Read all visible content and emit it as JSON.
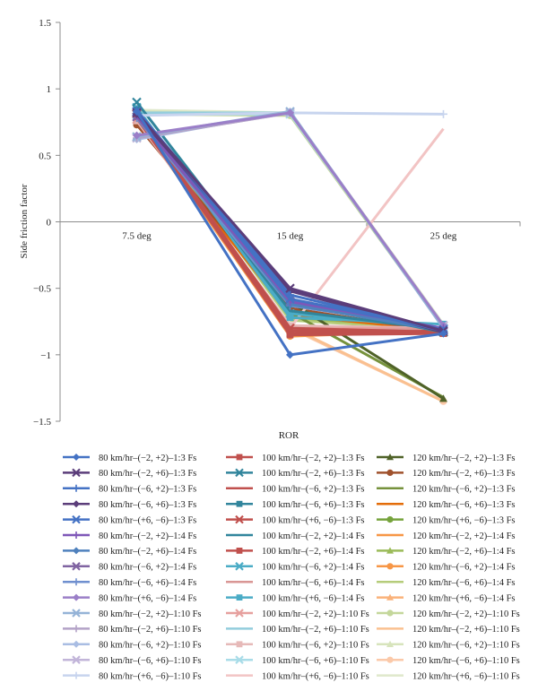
{
  "chart_data": {
    "type": "line",
    "title": "",
    "xlabel": "ROR",
    "ylabel": "Side friction factor",
    "categories": [
      "7.5 deg",
      "15 deg",
      "25 deg"
    ],
    "ylim": [
      -1.5,
      1.5
    ],
    "yticks": [
      1.5,
      1,
      0.5,
      0,
      -0.5,
      -1,
      -1.5
    ],
    "ytick_labels": [
      "1.5",
      "1",
      "0.5",
      "0",
      "−0.5",
      "−1",
      "−1.5"
    ],
    "grid": false,
    "legend_position": "bottom",
    "series": [
      {
        "name": "80 km/hr–(−2, +2)–1:3 Fs",
        "color": "#4472c4",
        "marker": "diamond",
        "values": [
          0.83,
          -1.0,
          -0.84
        ]
      },
      {
        "name": "80 km/hr–(−2, +6)–1:3 Fs",
        "color": "#5b3d7a",
        "marker": "x",
        "values": [
          0.82,
          -0.5,
          -0.82
        ]
      },
      {
        "name": "80 km/hr–(−6, +2)–1:3 Fs",
        "color": "#4472c4",
        "marker": "plus",
        "values": [
          0.84,
          -0.55,
          -0.82
        ]
      },
      {
        "name": "80 km/hr–(−6, +6)–1:3 Fs",
        "color": "#5b3d7a",
        "marker": "diamond",
        "values": [
          0.81,
          -0.52,
          -0.83
        ]
      },
      {
        "name": "80 km/hr–(+6, −6)–1:3 Fs",
        "color": "#4472c4",
        "marker": "x",
        "values": [
          0.83,
          -0.58,
          -0.81
        ]
      },
      {
        "name": "80 km/hr–(−2, +2)–1:4 Fs",
        "color": "#7e57b8",
        "marker": "plus",
        "values": [
          0.8,
          -0.6,
          -0.8
        ]
      },
      {
        "name": "80 km/hr–(−2, +6)–1:4 Fs",
        "color": "#4f81bd",
        "marker": "diamond",
        "values": [
          0.82,
          -0.62,
          -0.82
        ]
      },
      {
        "name": "80 km/hr–(−6, +2)–1:4 Fs",
        "color": "#8064a2",
        "marker": "x",
        "values": [
          0.79,
          -0.6,
          -0.81
        ]
      },
      {
        "name": "80 km/hr–(−6, +6)–1:4 Fs",
        "color": "#6f8fcf",
        "marker": "plus",
        "values": [
          0.78,
          -0.63,
          -0.8
        ]
      },
      {
        "name": "80 km/hr–(+6, −6)–1:4 Fs",
        "color": "#9b7fc8",
        "marker": "diamond",
        "values": [
          0.65,
          0.82,
          -0.78
        ]
      },
      {
        "name": "80 km/hr–(−2, +2)–1:10 Fs",
        "color": "#95b3d7",
        "marker": "x",
        "values": [
          0.64,
          0.83,
          -0.8
        ]
      },
      {
        "name": "80 km/hr–(−2, +6)–1:10 Fs",
        "color": "#b3a2c7",
        "marker": "plus",
        "values": [
          0.63,
          0.82,
          -0.79
        ]
      },
      {
        "name": "80 km/hr–(−6, +2)–1:10 Fs",
        "color": "#a9bde3",
        "marker": "diamond",
        "values": [
          0.62,
          0.83,
          -0.79
        ]
      },
      {
        "name": "80 km/hr–(−6, +6)–1:10 Fs",
        "color": "#c2b5d9",
        "marker": "x",
        "values": [
          0.63,
          0.82,
          -0.78
        ]
      },
      {
        "name": "80 km/hr–(+6, −6)–1:10 Fs",
        "color": "#c7d4ee",
        "marker": "plus",
        "values": [
          0.8,
          0.82,
          0.81
        ]
      },
      {
        "name": "100 km/hr–(−2, +2)–1:3 Fs",
        "color": "#c0504d",
        "marker": "square",
        "values": [
          0.8,
          -0.85,
          -0.84
        ]
      },
      {
        "name": "100 km/hr–(−2, +6)–1:3 Fs",
        "color": "#31859c",
        "marker": "x",
        "values": [
          0.9,
          -0.6,
          -0.83
        ]
      },
      {
        "name": "100 km/hr–(−6, +2)–1:3 Fs",
        "color": "#c0504d",
        "marker": "none",
        "values": [
          0.78,
          -0.82,
          -0.83
        ]
      },
      {
        "name": "100 km/hr–(−6, +6)–1:3 Fs",
        "color": "#31859c",
        "marker": "square",
        "values": [
          0.84,
          -0.62,
          -0.82
        ]
      },
      {
        "name": "100 km/hr–(+6, −6)–1:3 Fs",
        "color": "#c0504d",
        "marker": "x",
        "values": [
          0.81,
          -0.8,
          -0.83
        ]
      },
      {
        "name": "100 km/hr–(−2, +2)–1:4 Fs",
        "color": "#31859c",
        "marker": "none",
        "values": [
          0.83,
          -0.67,
          -0.81
        ]
      },
      {
        "name": "100 km/hr–(−2, +6)–1:4 Fs",
        "color": "#c0504d",
        "marker": "square",
        "values": [
          0.79,
          -0.84,
          -0.82
        ]
      },
      {
        "name": "100 km/hr–(−6, +2)–1:4 Fs",
        "color": "#4bacc6",
        "marker": "x",
        "values": [
          0.86,
          -0.69,
          -0.8
        ]
      },
      {
        "name": "100 km/hr–(−6, +6)–1:4 Fs",
        "color": "#d99694",
        "marker": "none",
        "values": [
          0.78,
          -0.82,
          -0.81
        ]
      },
      {
        "name": "100 km/hr–(+6, −6)–1:4 Fs",
        "color": "#4bacc6",
        "marker": "square",
        "values": [
          0.85,
          -0.72,
          -0.77
        ]
      },
      {
        "name": "100 km/hr–(−2, +2)–1:10 Fs",
        "color": "#e6a09e",
        "marker": "x",
        "values": [
          0.77,
          -0.8,
          -0.8
        ]
      },
      {
        "name": "100 km/hr–(−2, +6)–1:10 Fs",
        "color": "#93cddd",
        "marker": "none",
        "values": [
          0.82,
          0.82,
          -0.79
        ]
      },
      {
        "name": "100 km/hr–(−6, +2)–1:10 Fs",
        "color": "#e6b9b8",
        "marker": "square",
        "values": [
          0.76,
          -0.78,
          -0.8
        ]
      },
      {
        "name": "100 km/hr–(−6, +6)–1:10 Fs",
        "color": "#a9dce8",
        "marker": "x",
        "values": [
          0.81,
          0.81,
          -0.78
        ]
      },
      {
        "name": "100 km/hr–(+6, −6)–1:10 Fs",
        "color": "#f2c4c4",
        "marker": "none",
        "values": [
          0.78,
          -0.8,
          0.7
        ]
      },
      {
        "name": "120 km/hr–(−2, +2)–1:3 Fs",
        "color": "#4f6228",
        "marker": "triangle",
        "values": [
          0.84,
          -0.6,
          -1.33
        ]
      },
      {
        "name": "120 km/hr–(−2, +6)–1:3 Fs",
        "color": "#a0522d",
        "marker": "circle",
        "values": [
          0.73,
          -0.65,
          -0.83
        ]
      },
      {
        "name": "120 km/hr–(−6, +2)–1:3 Fs",
        "color": "#76923c",
        "marker": "none",
        "values": [
          0.82,
          -0.68,
          -1.32
        ]
      },
      {
        "name": "120 km/hr–(−6, +6)–1:3 Fs",
        "color": "#e36c09",
        "marker": "none",
        "values": [
          0.75,
          -0.7,
          -0.82
        ]
      },
      {
        "name": "120 km/hr–(+6, −6)–1:3 Fs",
        "color": "#76a33c",
        "marker": "circle",
        "values": [
          0.85,
          -0.7,
          -0.81
        ]
      },
      {
        "name": "120 km/hr–(−2, +2)–1:4 Fs",
        "color": "#f79646",
        "marker": "none",
        "values": [
          0.76,
          -0.78,
          -0.82
        ]
      },
      {
        "name": "120 km/hr–(−2, +6)–1:4 Fs",
        "color": "#9bbb59",
        "marker": "triangle",
        "values": [
          0.83,
          -0.72,
          -0.8
        ]
      },
      {
        "name": "120 km/hr–(−6, +2)–1:4 Fs",
        "color": "#f79646",
        "marker": "circle",
        "values": [
          0.78,
          -0.86,
          -0.82
        ]
      },
      {
        "name": "120 km/hr–(−6, +6)–1:4 Fs",
        "color": "#b5cc7a",
        "marker": "none",
        "values": [
          0.82,
          -0.74,
          -0.81
        ]
      },
      {
        "name": "120 km/hr–(+6, −6)–1:4 Fs",
        "color": "#fab27a",
        "marker": "triangle",
        "values": [
          0.77,
          -0.82,
          -0.8
        ]
      },
      {
        "name": "120 km/hr–(−2, +2)–1:10 Fs",
        "color": "#c4d79b",
        "marker": "circle",
        "values": [
          0.81,
          0.8,
          -0.79
        ]
      },
      {
        "name": "120 km/hr–(−2, +6)–1:10 Fs",
        "color": "#fac090",
        "marker": "none",
        "values": [
          0.79,
          -0.79,
          -1.35
        ]
      },
      {
        "name": "120 km/hr–(−6, +2)–1:10 Fs",
        "color": "#d7e4bc",
        "marker": "triangle",
        "values": [
          0.83,
          0.81,
          -0.78
        ]
      },
      {
        "name": "120 km/hr–(−6, +6)–1:10 Fs",
        "color": "#fbc9a9",
        "marker": "circle",
        "values": [
          0.8,
          -0.8,
          -1.35
        ]
      },
      {
        "name": "120 km/hr–(+6, −6)–1:10 Fs",
        "color": "#dfe8cb",
        "marker": "none",
        "values": [
          0.84,
          0.82,
          -0.77
        ]
      }
    ]
  }
}
